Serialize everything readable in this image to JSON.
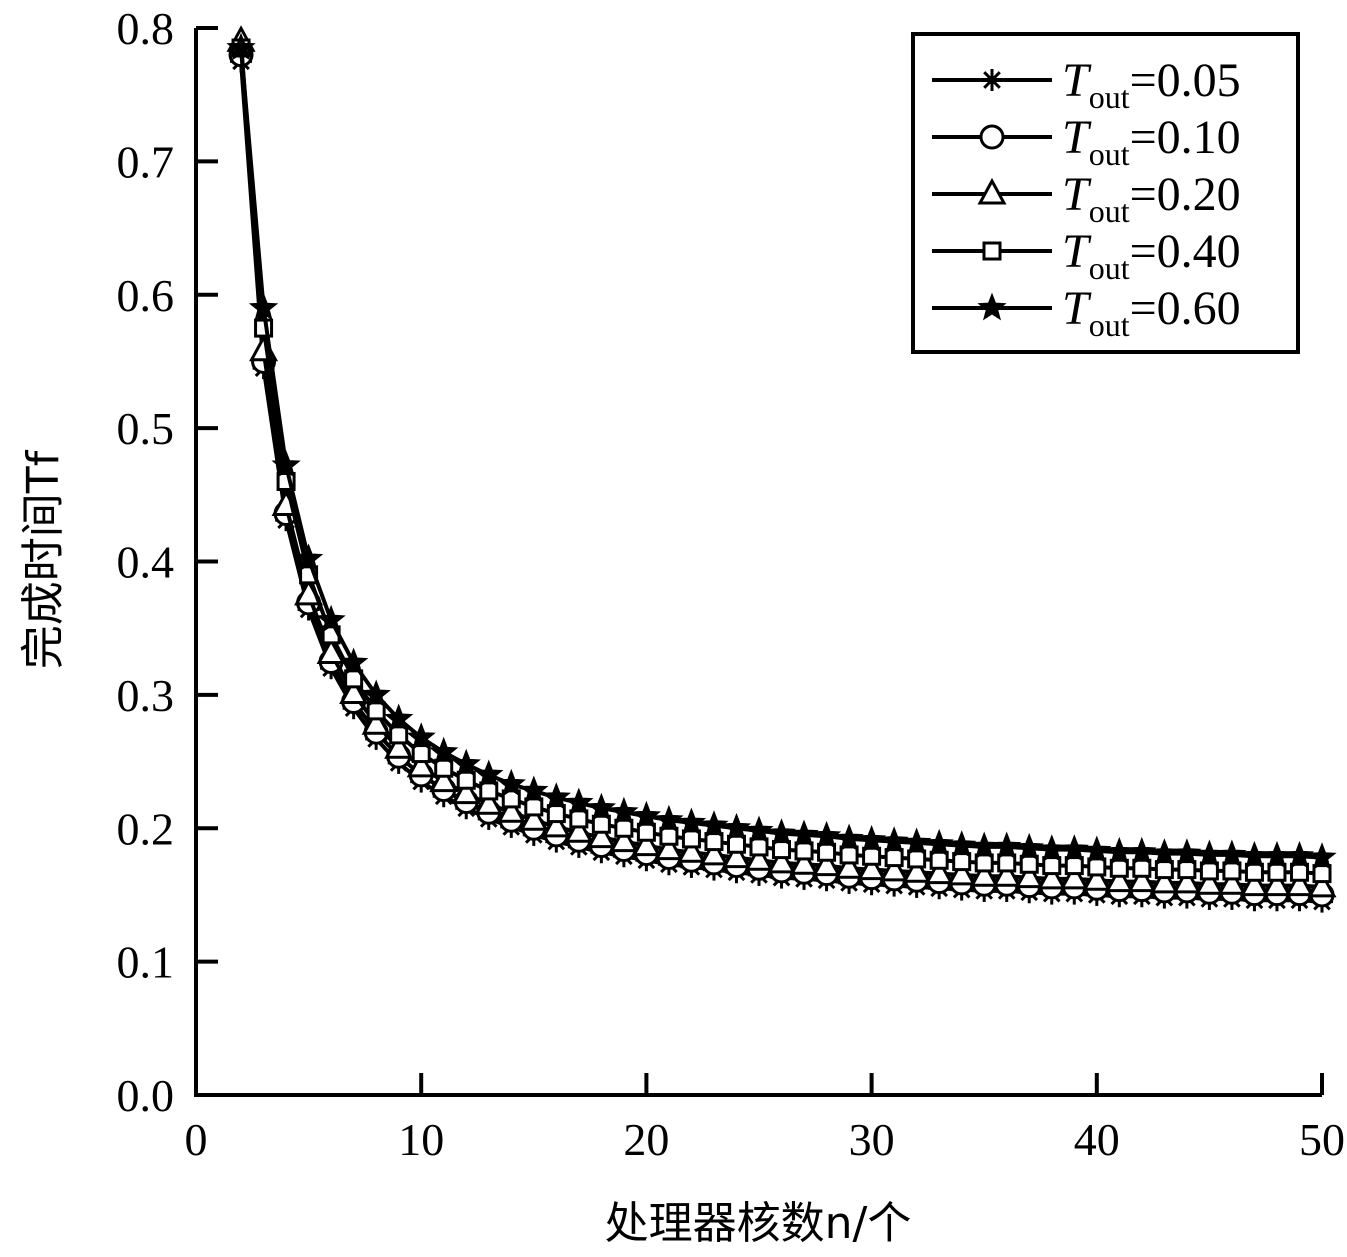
{
  "chart_data": {
    "type": "line",
    "title": "",
    "xlabel": "处理器核数n/个",
    "ylabel": "完成时间Tf",
    "xlim": [
      0,
      50
    ],
    "ylim": [
      0.0,
      0.8
    ],
    "xticks": [
      "0",
      "10",
      "20",
      "30",
      "40",
      "50"
    ],
    "yticks": [
      "0.0",
      "0.1",
      "0.2",
      "0.3",
      "0.4",
      "0.5",
      "0.6",
      "0.7",
      "0.8"
    ],
    "grid": false,
    "legend_position": "top-right",
    "line_color": "#000000",
    "x": [
      2,
      3,
      4,
      5,
      6,
      7,
      8,
      9,
      10,
      11,
      12,
      13,
      14,
      15,
      16,
      17,
      18,
      19,
      20,
      21,
      22,
      23,
      24,
      25,
      26,
      27,
      28,
      29,
      30,
      31,
      32,
      33,
      34,
      35,
      36,
      37,
      38,
      39,
      40,
      41,
      42,
      43,
      44,
      45,
      46,
      47,
      48,
      49,
      50
    ],
    "series": [
      {
        "name": "Tout=0.05",
        "legend_var": "T",
        "legend_sub": "out",
        "legend_value": "=0.05",
        "marker": "asterisk",
        "values": [
          0.775,
          0.545,
          0.431,
          0.364,
          0.32,
          0.29,
          0.267,
          0.249,
          0.235,
          0.224,
          0.215,
          0.207,
          0.201,
          0.195,
          0.19,
          0.186,
          0.182,
          0.179,
          0.176,
          0.173,
          0.171,
          0.169,
          0.167,
          0.165,
          0.163,
          0.162,
          0.161,
          0.159,
          0.158,
          0.157,
          0.156,
          0.155,
          0.154,
          0.153,
          0.153,
          0.152,
          0.151,
          0.151,
          0.15,
          0.149,
          0.149,
          0.148,
          0.148,
          0.147,
          0.147,
          0.146,
          0.146,
          0.146,
          0.145
        ]
      },
      {
        "name": "Tout=0.10",
        "legend_var": "T",
        "legend_sub": "out",
        "legend_value": "=0.10",
        "marker": "circle",
        "values": [
          0.78,
          0.55,
          0.436,
          0.369,
          0.325,
          0.295,
          0.272,
          0.254,
          0.24,
          0.229,
          0.22,
          0.212,
          0.206,
          0.2,
          0.195,
          0.191,
          0.187,
          0.184,
          0.181,
          0.178,
          0.176,
          0.174,
          0.172,
          0.17,
          0.168,
          0.167,
          0.166,
          0.164,
          0.163,
          0.162,
          0.161,
          0.16,
          0.159,
          0.158,
          0.158,
          0.157,
          0.156,
          0.156,
          0.155,
          0.154,
          0.154,
          0.153,
          0.153,
          0.152,
          0.152,
          0.151,
          0.151,
          0.151,
          0.15
        ]
      },
      {
        "name": "Tout=0.20",
        "legend_var": "T",
        "legend_sub": "out",
        "legend_value": "=0.20",
        "marker": "triangle",
        "values": [
          0.79,
          0.558,
          0.442,
          0.375,
          0.331,
          0.301,
          0.278,
          0.26,
          0.246,
          0.235,
          0.226,
          0.218,
          0.212,
          0.206,
          0.201,
          0.197,
          0.193,
          0.19,
          0.187,
          0.184,
          0.182,
          0.18,
          0.178,
          0.176,
          0.174,
          0.173,
          0.172,
          0.17,
          0.169,
          0.168,
          0.167,
          0.166,
          0.165,
          0.164,
          0.164,
          0.163,
          0.162,
          0.162,
          0.161,
          0.16,
          0.16,
          0.159,
          0.159,
          0.158,
          0.158,
          0.157,
          0.157,
          0.157,
          0.156
        ]
      },
      {
        "name": "Tout=0.40",
        "legend_var": "T",
        "legend_sub": "out",
        "legend_value": "=0.40",
        "marker": "square",
        "values": [
          0.785,
          0.575,
          0.46,
          0.39,
          0.345,
          0.312,
          0.288,
          0.27,
          0.256,
          0.245,
          0.236,
          0.228,
          0.222,
          0.216,
          0.211,
          0.207,
          0.203,
          0.2,
          0.197,
          0.194,
          0.192,
          0.19,
          0.188,
          0.186,
          0.184,
          0.183,
          0.182,
          0.18,
          0.179,
          0.178,
          0.177,
          0.176,
          0.175,
          0.174,
          0.174,
          0.173,
          0.172,
          0.172,
          0.171,
          0.17,
          0.17,
          0.169,
          0.169,
          0.168,
          0.168,
          0.167,
          0.167,
          0.167,
          0.166
        ]
      },
      {
        "name": "Tout=0.60",
        "legend_var": "T",
        "legend_sub": "out",
        "legend_value": "=0.60",
        "marker": "star",
        "values": [
          0.785,
          0.59,
          0.472,
          0.402,
          0.356,
          0.324,
          0.3,
          0.282,
          0.268,
          0.257,
          0.248,
          0.24,
          0.233,
          0.228,
          0.223,
          0.219,
          0.215,
          0.212,
          0.209,
          0.206,
          0.204,
          0.202,
          0.2,
          0.198,
          0.196,
          0.195,
          0.194,
          0.192,
          0.191,
          0.19,
          0.189,
          0.188,
          0.187,
          0.186,
          0.186,
          0.185,
          0.184,
          0.184,
          0.183,
          0.182,
          0.182,
          0.181,
          0.181,
          0.18,
          0.18,
          0.179,
          0.179,
          0.179,
          0.178
        ]
      }
    ]
  }
}
